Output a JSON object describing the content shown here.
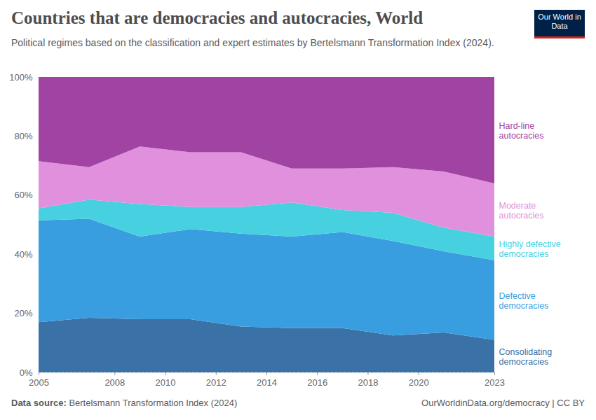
{
  "chart_data": {
    "type": "area",
    "stacked": true,
    "title": "Countries that are democracies and autocracies, World",
    "subtitle": "Political regimes based on the classification and expert estimates by Bertelsmann Transformation Index (2024).",
    "logo": "Our World in Data",
    "source_label": "Data source:",
    "source": "Bertelsmann Transformation Index (2024)",
    "url_note": "OurWorldinData.org/democracy | CC BY",
    "legend": "right",
    "grid": true,
    "x": [
      2005,
      2007,
      2009,
      2011,
      2013,
      2015,
      2017,
      2019,
      2021,
      2023
    ],
    "xlim": [
      2005,
      2023
    ],
    "xticks": [
      2005,
      2008,
      2010,
      2012,
      2014,
      2016,
      2018,
      2020,
      2023
    ],
    "ylim": [
      0,
      100
    ],
    "yticks": [
      {
        "value": 0,
        "label": "0%"
      },
      {
        "value": 20,
        "label": "20%"
      },
      {
        "value": 40,
        "label": "40%"
      },
      {
        "value": 60,
        "label": "60%"
      },
      {
        "value": 80,
        "label": "80%"
      },
      {
        "value": 100,
        "label": "100%"
      }
    ],
    "series": [
      {
        "name": "Consolidating democracies",
        "color": "#3a71a6",
        "values": [
          17,
          18.5,
          18,
          18,
          15.5,
          15,
          15,
          12.5,
          13.5,
          11
        ]
      },
      {
        "name": "Defective democracies",
        "color": "#399ee0",
        "values": [
          34.5,
          33.5,
          28,
          30.5,
          31.5,
          31,
          32.5,
          32,
          27.5,
          27
        ]
      },
      {
        "name": "Highly defective democracies",
        "color": "#47d0e0",
        "values": [
          4,
          6.5,
          11,
          7.5,
          9,
          11.5,
          7.5,
          9.5,
          8,
          8
        ]
      },
      {
        "name": "Moderate autocracies",
        "color": "#e090dc",
        "values": [
          16,
          11,
          19.5,
          18.5,
          18.5,
          11.5,
          14,
          15.5,
          19,
          18
        ]
      },
      {
        "name": "Hard-line autocracies",
        "color": "#a043a2",
        "values": [
          28.5,
          30.5,
          23.5,
          25.5,
          25.5,
          31,
          31,
          30.5,
          32,
          36
        ]
      }
    ]
  }
}
